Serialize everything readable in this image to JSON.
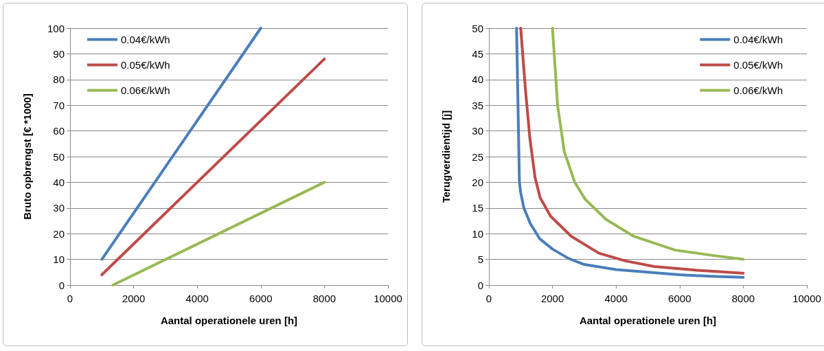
{
  "chart_data": [
    {
      "type": "line",
      "xlabel": "Aantal operationele uren [h]",
      "ylabel": "Bruto opbrengst [€ *1000]",
      "xlim": [
        0,
        10000
      ],
      "xticks": [
        0,
        2000,
        4000,
        6000,
        8000,
        10000
      ],
      "ylim": [
        0,
        100
      ],
      "yticks": [
        0,
        10,
        20,
        30,
        40,
        50,
        60,
        70,
        80,
        90,
        100
      ],
      "grid": "y",
      "legend": "top left",
      "marker": "none",
      "line_style": "solid",
      "series": [
        {
          "name": "0.04€/kWh",
          "color": "#4a7ebb",
          "x": [
            1000,
            6000
          ],
          "values": [
            10,
            100
          ]
        },
        {
          "name": "0.05€/kWh",
          "color": "#be4b48",
          "x": [
            1000,
            8000
          ],
          "values": [
            4,
            88
          ]
        },
        {
          "name": "0.06€/kWh",
          "color": "#98b954",
          "x": [
            1350,
            8000
          ],
          "values": [
            0,
            40
          ]
        }
      ]
    },
    {
      "type": "line",
      "xlabel": "Aantal operationele uren [h]",
      "ylabel": "Terugverdientijd [j]",
      "xlim": [
        0,
        10000
      ],
      "xticks": [
        0,
        2000,
        4000,
        6000,
        8000,
        10000
      ],
      "ylim": [
        0,
        50
      ],
      "yticks": [
        0,
        5,
        10,
        15,
        20,
        25,
        30,
        35,
        40,
        45,
        50
      ],
      "grid": "y",
      "legend": "top right",
      "marker": "none",
      "line_style": "solid",
      "series": [
        {
          "name": "0.04€/kWh",
          "color": "#4a7ebb",
          "x": [
            870,
            900,
            930,
            960,
            1000,
            1100,
            1300,
            1600,
            2000,
            2500,
            3000,
            4000,
            5000,
            6000,
            7000,
            8000
          ],
          "values": [
            50,
            40,
            30,
            20,
            18,
            15,
            12,
            9,
            7,
            5.2,
            4,
            3,
            2.5,
            2,
            1.7,
            1.5
          ]
        },
        {
          "name": "0.05€/kWh",
          "color": "#be4b48",
          "x": [
            1000,
            1150,
            1290,
            1450,
            1610,
            1940,
            2590,
            3460,
            4300,
            5200,
            6500,
            8000
          ],
          "values": [
            50,
            38,
            28.5,
            21,
            17,
            13.4,
            9.5,
            6.2,
            4.7,
            3.6,
            2.9,
            2.3
          ]
        },
        {
          "name": "0.06€/kWh",
          "color": "#98b954",
          "x": [
            2000,
            2160,
            2370,
            2700,
            3030,
            3680,
            4550,
            5860,
            7000,
            8000
          ],
          "values": [
            50,
            35,
            26,
            20,
            16.7,
            12.8,
            9.5,
            6.8,
            5.8,
            5
          ]
        }
      ]
    }
  ]
}
